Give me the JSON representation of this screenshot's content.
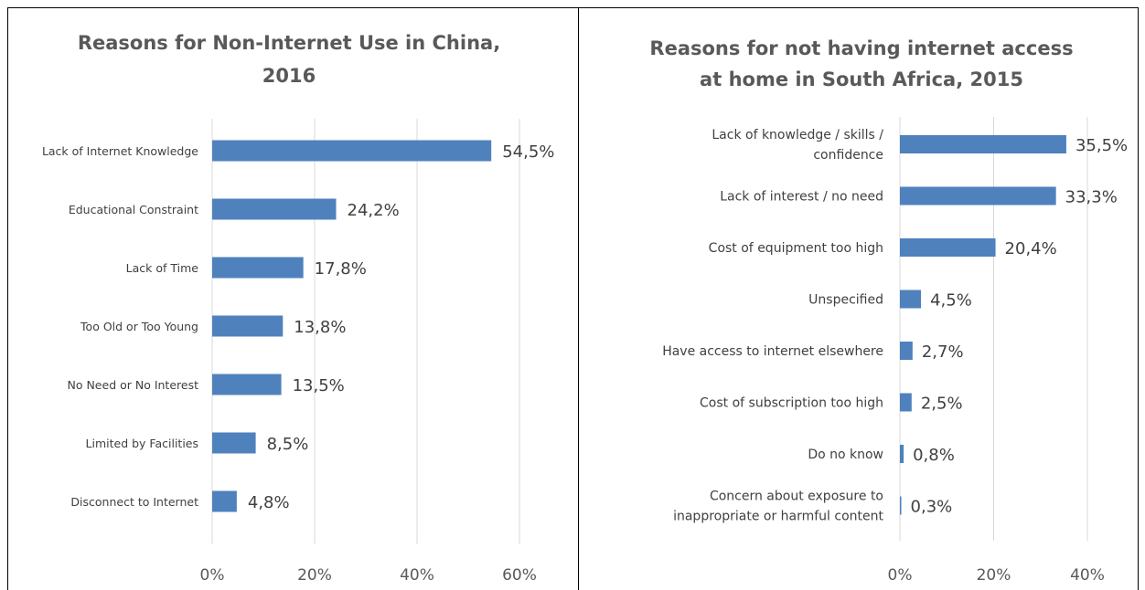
{
  "chart_data": [
    {
      "type": "bar",
      "orientation": "horizontal",
      "title_lines": [
        "Reasons for Non-Internet Use in China,",
        "2016"
      ],
      "categories": [
        "Lack of Internet Knowledge",
        "Educational Constraint",
        "Lack of Time",
        "Too Old or Too Young",
        "No Need or No Interest",
        "Limited by Facilities",
        "Disconnect to Internet"
      ],
      "values": [
        54.5,
        24.2,
        17.8,
        13.8,
        13.5,
        8.5,
        4.8
      ],
      "data_labels": [
        "54,5%",
        "24,2%",
        "17,8%",
        "13,8%",
        "13,5%",
        "8,5%",
        "4,8%"
      ],
      "ticks": [
        0,
        20,
        40,
        60
      ],
      "tick_labels": [
        "0%",
        "20%",
        "40%",
        "60%"
      ],
      "xlim": [
        0,
        60
      ],
      "gridlines": true,
      "legend": "none",
      "bar_color": "#4f81bd"
    },
    {
      "type": "bar",
      "orientation": "horizontal",
      "title_lines": [
        "Reasons for not having internet access",
        "at home in South Africa, 2015"
      ],
      "categories": [
        [
          "Lack of knowledge / skills /",
          "confidence"
        ],
        [
          "Lack of interest / no need"
        ],
        [
          "Cost of equipment too high"
        ],
        [
          "Unspecified"
        ],
        [
          "Have access to internet elsewhere"
        ],
        [
          "Cost of subscription too high"
        ],
        [
          "Do no know"
        ],
        [
          "Concern about exposure to",
          "inappropriate or harmful content"
        ]
      ],
      "values": [
        35.5,
        33.3,
        20.4,
        4.5,
        2.7,
        2.5,
        0.8,
        0.3
      ],
      "data_labels": [
        "35,5%",
        "33,3%",
        "20,4%",
        "4,5%",
        "2,7%",
        "2,5%",
        "0,8%",
        "0,3%"
      ],
      "ticks": [
        0,
        20,
        40
      ],
      "tick_labels": [
        "0%",
        "20%",
        "40%"
      ],
      "xlim": [
        0,
        40
      ],
      "gridlines": true,
      "legend": "none",
      "bar_color": "#4f81bd"
    }
  ]
}
